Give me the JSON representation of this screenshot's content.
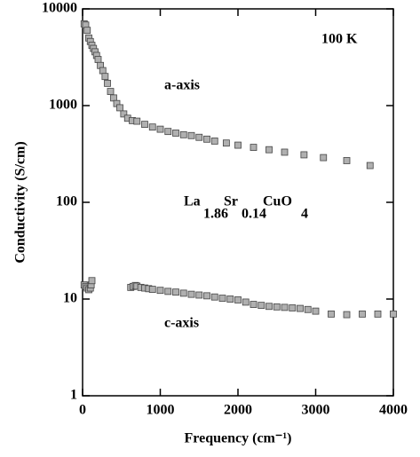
{
  "chart_data": {
    "type": "scatter",
    "xlabel": "Frequency (cm⁻¹)",
    "ylabel": "Conductivity (S/cm)",
    "xlim": [
      0,
      4000
    ],
    "xticks": [
      0,
      1000,
      2000,
      3000,
      4000
    ],
    "ylim": [
      1,
      10000
    ],
    "yticks": [
      1,
      10,
      100,
      1000,
      10000
    ],
    "ylog": true,
    "annotations": [
      "100 K"
    ],
    "formula": [
      "La",
      "1.86",
      "Sr",
      "0.14",
      "CuO",
      "4"
    ],
    "series": [
      {
        "name": "a-axis",
        "color": "#b0b0b0",
        "x": [
          20,
          40,
          60,
          80,
          100,
          120,
          140,
          160,
          180,
          200,
          230,
          260,
          290,
          320,
          360,
          400,
          440,
          480,
          530,
          580,
          640,
          700,
          800,
          900,
          1000,
          1100,
          1200,
          1300,
          1400,
          1500,
          1600,
          1700,
          1850,
          2000,
          2200,
          2400,
          2600,
          2850,
          3100,
          3400,
          3700
        ],
        "values": [
          7000,
          6800,
          6000,
          5000,
          4600,
          4200,
          3900,
          3600,
          3300,
          3000,
          2600,
          2300,
          2000,
          1700,
          1400,
          1200,
          1050,
          950,
          820,
          740,
          700,
          690,
          640,
          600,
          570,
          540,
          520,
          500,
          490,
          470,
          450,
          430,
          410,
          390,
          370,
          350,
          330,
          310,
          290,
          270,
          240
        ]
      },
      {
        "name": "c-axis",
        "color": "#b0b0b0",
        "x": [
          20,
          40,
          60,
          80,
          100,
          110,
          120,
          620,
          650,
          680,
          700,
          750,
          800,
          850,
          900,
          1000,
          1100,
          1200,
          1300,
          1400,
          1500,
          1600,
          1700,
          1800,
          1900,
          2000,
          2100,
          2200,
          2300,
          2400,
          2500,
          2600,
          2700,
          2800,
          2900,
          3000,
          3200,
          3400,
          3600,
          3800,
          4000
        ],
        "values": [
          14,
          13.5,
          13,
          12.5,
          13,
          14,
          15.5,
          13.2,
          13.5,
          13.8,
          13.6,
          13.2,
          13,
          12.8,
          12.6,
          12.3,
          12,
          11.8,
          11.5,
          11.2,
          11,
          10.8,
          10.5,
          10.2,
          10,
          9.8,
          9.3,
          8.8,
          8.6,
          8.4,
          8.3,
          8.2,
          8.1,
          8,
          7.8,
          7.5,
          7,
          6.9,
          7,
          7,
          7
        ]
      }
    ]
  }
}
